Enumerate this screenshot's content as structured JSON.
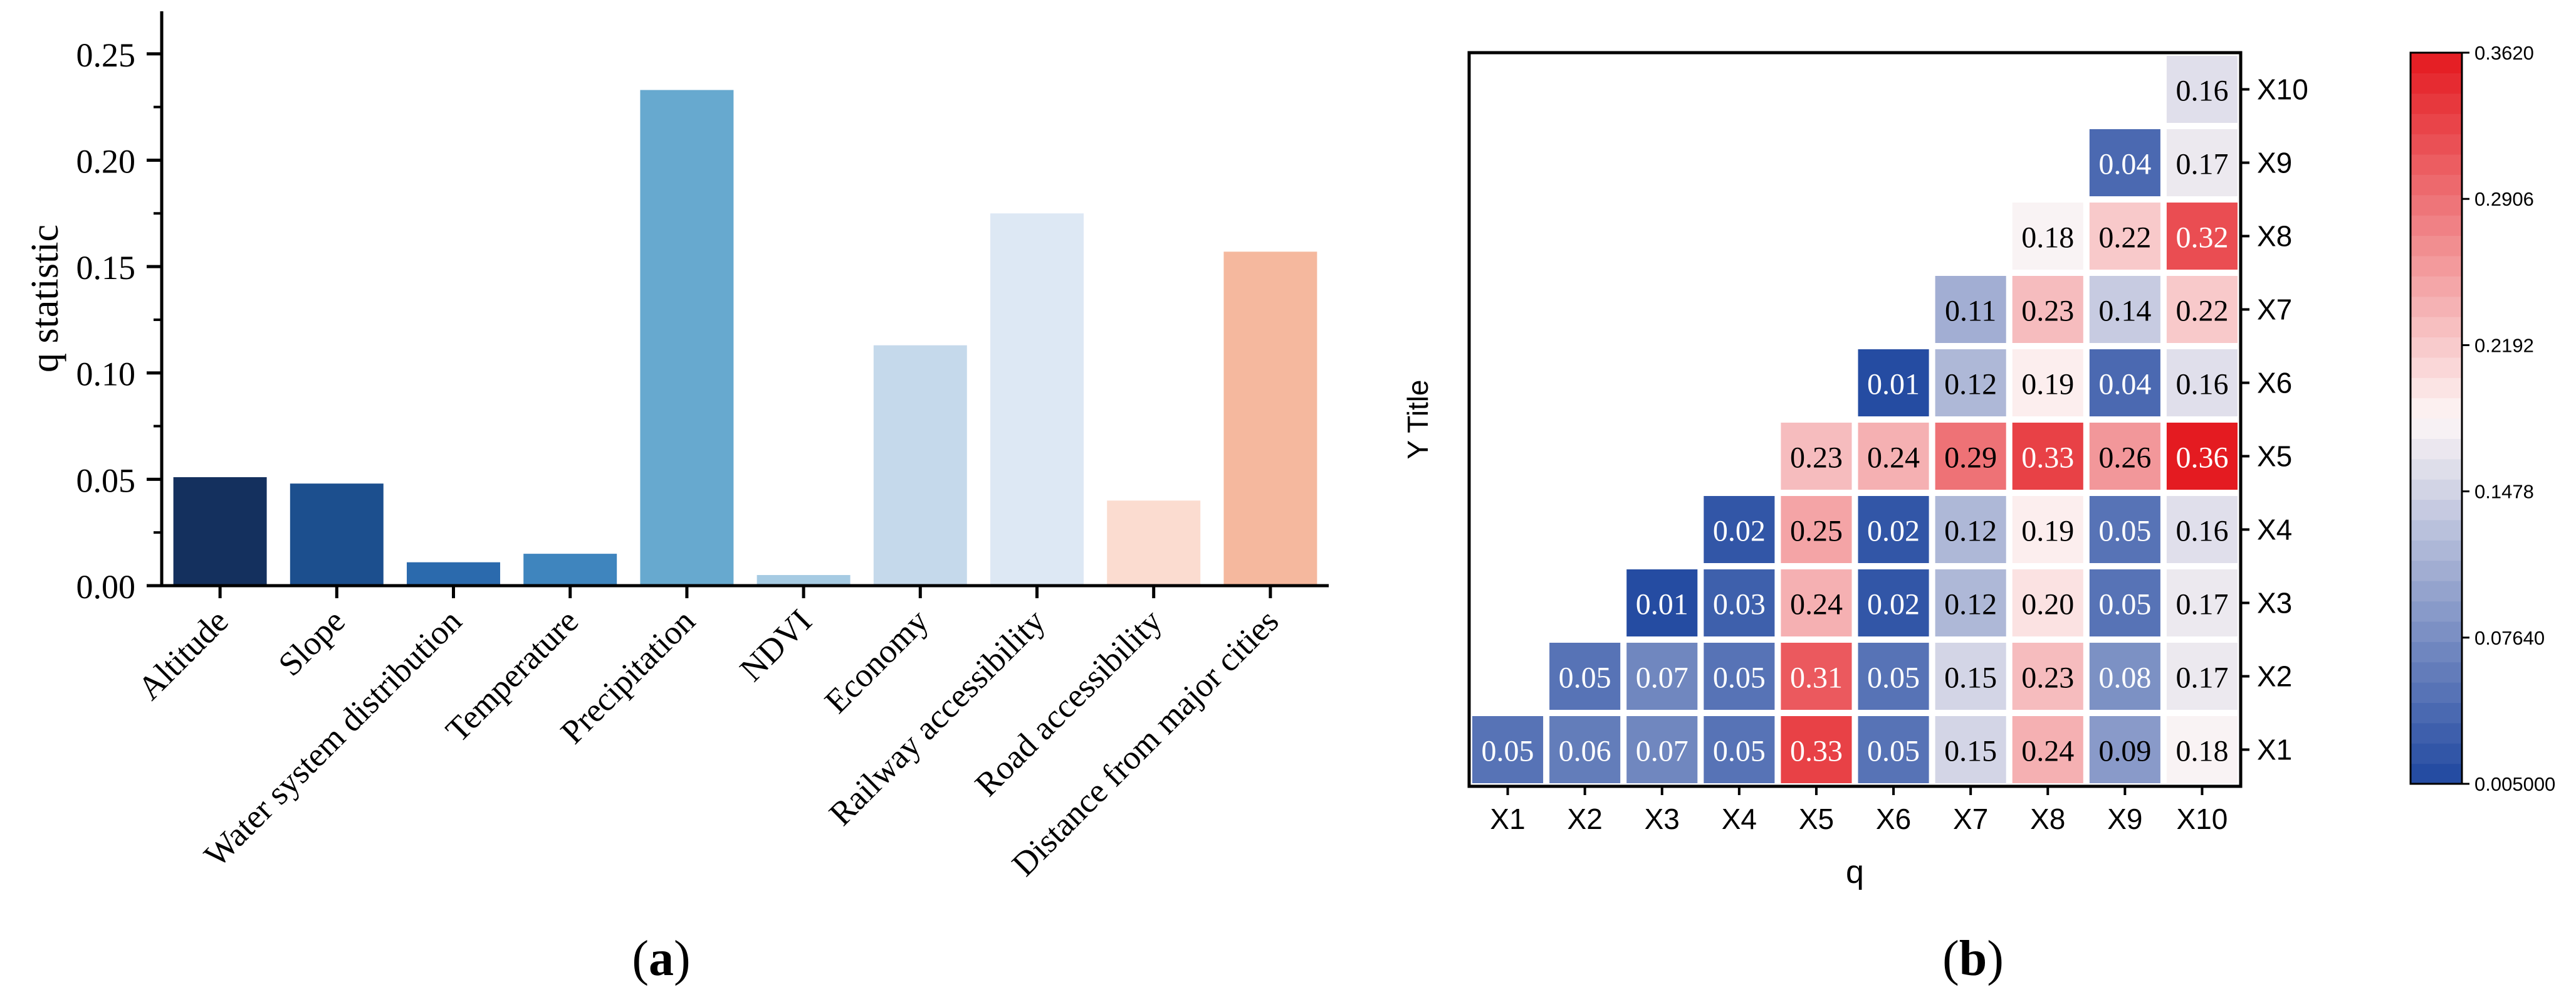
{
  "chart_data": [
    {
      "type": "bar",
      "panel_label_open": "(",
      "panel_label_letter": "a",
      "panel_label_close": ")",
      "title": "",
      "xlabel": "",
      "ylabel": "q statistic",
      "ylim": [
        0,
        0.27
      ],
      "yticks": [
        "0.00",
        "0.05",
        "0.10",
        "0.15",
        "0.20",
        "0.25"
      ],
      "ytick_values": [
        0,
        0.05,
        0.1,
        0.15,
        0.2,
        0.25
      ],
      "categories": [
        "Altitude",
        "Slope",
        "Water system distribution",
        "Temperature",
        "Precipitation",
        "NDVI",
        "Economy",
        "Railway accessibility",
        "Road accessibility",
        "Distance from major cities"
      ],
      "values": [
        0.051,
        0.048,
        0.011,
        0.015,
        0.233,
        0.005,
        0.113,
        0.175,
        0.04,
        0.157
      ],
      "colors": [
        "#14305e",
        "#1c4f8e",
        "#2b6aad",
        "#3f85be",
        "#67a9cf",
        "#a6cbe3",
        "#c5d9eb",
        "#dde8f4",
        "#fbdcd0",
        "#f5b89e"
      ]
    },
    {
      "type": "heatmap",
      "panel_label_open": "(",
      "panel_label_letter": "b",
      "panel_label_close": ")",
      "xlabel": "q",
      "ylabel": "Y Title",
      "x_labels": [
        "X1",
        "X2",
        "X3",
        "X4",
        "X5",
        "X6",
        "X7",
        "X8",
        "X9",
        "X10"
      ],
      "y_labels": [
        "X1",
        "X2",
        "X3",
        "X4",
        "X5",
        "X6",
        "X7",
        "X8",
        "X9",
        "X10"
      ],
      "cells": [
        {
          "row": 0,
          "col": 0,
          "value": 0.05
        },
        {
          "row": 0,
          "col": 1,
          "value": 0.06
        },
        {
          "row": 0,
          "col": 2,
          "value": 0.07
        },
        {
          "row": 0,
          "col": 3,
          "value": 0.05
        },
        {
          "row": 0,
          "col": 4,
          "value": 0.33
        },
        {
          "row": 0,
          "col": 5,
          "value": 0.05
        },
        {
          "row": 0,
          "col": 6,
          "value": 0.15
        },
        {
          "row": 0,
          "col": 7,
          "value": 0.24
        },
        {
          "row": 0,
          "col": 8,
          "value": 0.09
        },
        {
          "row": 0,
          "col": 9,
          "value": 0.18
        },
        {
          "row": 1,
          "col": 1,
          "value": 0.05
        },
        {
          "row": 1,
          "col": 2,
          "value": 0.07
        },
        {
          "row": 1,
          "col": 3,
          "value": 0.05
        },
        {
          "row": 1,
          "col": 4,
          "value": 0.31
        },
        {
          "row": 1,
          "col": 5,
          "value": 0.05
        },
        {
          "row": 1,
          "col": 6,
          "value": 0.15
        },
        {
          "row": 1,
          "col": 7,
          "value": 0.23
        },
        {
          "row": 1,
          "col": 8,
          "value": 0.08
        },
        {
          "row": 1,
          "col": 9,
          "value": 0.17
        },
        {
          "row": 2,
          "col": 2,
          "value": 0.01
        },
        {
          "row": 2,
          "col": 3,
          "value": 0.03
        },
        {
          "row": 2,
          "col": 4,
          "value": 0.24
        },
        {
          "row": 2,
          "col": 5,
          "value": 0.02
        },
        {
          "row": 2,
          "col": 6,
          "value": 0.12
        },
        {
          "row": 2,
          "col": 7,
          "value": 0.2
        },
        {
          "row": 2,
          "col": 8,
          "value": 0.05
        },
        {
          "row": 2,
          "col": 9,
          "value": 0.17
        },
        {
          "row": 3,
          "col": 3,
          "value": 0.02
        },
        {
          "row": 3,
          "col": 4,
          "value": 0.25
        },
        {
          "row": 3,
          "col": 5,
          "value": 0.02
        },
        {
          "row": 3,
          "col": 6,
          "value": 0.12
        },
        {
          "row": 3,
          "col": 7,
          "value": 0.19
        },
        {
          "row": 3,
          "col": 8,
          "value": 0.05
        },
        {
          "row": 3,
          "col": 9,
          "value": 0.16
        },
        {
          "row": 4,
          "col": 4,
          "value": 0.23
        },
        {
          "row": 4,
          "col": 5,
          "value": 0.24
        },
        {
          "row": 4,
          "col": 6,
          "value": 0.29
        },
        {
          "row": 4,
          "col": 7,
          "value": 0.33
        },
        {
          "row": 4,
          "col": 8,
          "value": 0.26
        },
        {
          "row": 4,
          "col": 9,
          "value": 0.36
        },
        {
          "row": 5,
          "col": 5,
          "value": 0.01
        },
        {
          "row": 5,
          "col": 6,
          "value": 0.12
        },
        {
          "row": 5,
          "col": 7,
          "value": 0.19
        },
        {
          "row": 5,
          "col": 8,
          "value": 0.04
        },
        {
          "row": 5,
          "col": 9,
          "value": 0.16
        },
        {
          "row": 6,
          "col": 6,
          "value": 0.11
        },
        {
          "row": 6,
          "col": 7,
          "value": 0.23
        },
        {
          "row": 6,
          "col": 8,
          "value": 0.14
        },
        {
          "row": 6,
          "col": 9,
          "value": 0.22
        },
        {
          "row": 7,
          "col": 7,
          "value": 0.18
        },
        {
          "row": 7,
          "col": 8,
          "value": 0.22
        },
        {
          "row": 7,
          "col": 9,
          "value": 0.32
        },
        {
          "row": 8,
          "col": 8,
          "value": 0.04
        },
        {
          "row": 8,
          "col": 9,
          "value": 0.17
        },
        {
          "row": 9,
          "col": 9,
          "value": 0.16
        }
      ],
      "colorbar": {
        "min": 0.005,
        "max": 0.362,
        "tick_values": [
          0.005,
          0.0764,
          0.1478,
          0.2192,
          0.2906,
          0.362
        ],
        "tick_labels": [
          "0.005000",
          "0.07640",
          "0.1478",
          "0.2192",
          "0.2906",
          "0.3620"
        ],
        "low_color": "#1f47a0",
        "mid_color": "#fdf6f6",
        "high_color": "#e4191f"
      }
    }
  ]
}
